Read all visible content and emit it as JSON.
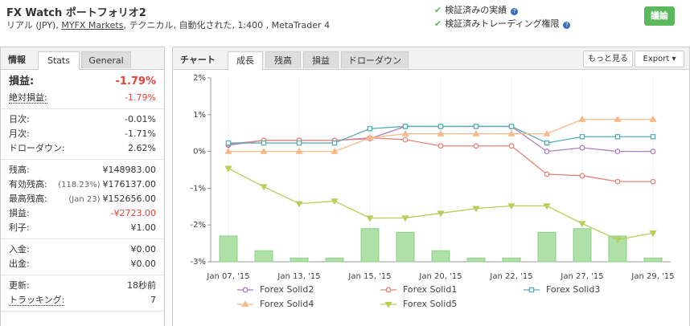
{
  "header": {
    "title": "FX Watch ポートフォリオ2",
    "subtitle": [
      "リアル (JPY), ",
      "MYFX Markets",
      ", テクニカル, 自動化された, 1:400 , MetaTrader 4"
    ],
    "verified": [
      "検証済みの実績",
      "検証済みトレーディング権限"
    ],
    "button": "議論"
  },
  "stats": {
    "tabs": [
      "情報",
      "Stats",
      "General"
    ],
    "groups": [
      [
        {
          "label": "損益:",
          "value": "-1.79%"
        },
        {
          "label": "絶対損益:",
          "value": "-1.79%"
        }
      ],
      [
        {
          "label": "日次:",
          "value": "-0.01%"
        },
        {
          "label": "月次:",
          "value": "-1.71%"
        },
        {
          "label": "ドローダウン:",
          "value": "2.62%"
        }
      ],
      [
        {
          "label": "残高:",
          "value": "¥148983.00"
        },
        {
          "label": "有効残高:",
          "note": "(118.23%)",
          "value": "¥176137.00"
        },
        {
          "label": "最高残高:",
          "note": "(Jan 23)",
          "value": "¥152656.00"
        },
        {
          "label": "損益:",
          "value": "-¥2723.00"
        },
        {
          "label": "利子:",
          "value": "¥1.00"
        }
      ],
      [
        {
          "label": "入金:",
          "value": "¥0.00"
        },
        {
          "label": "出金:",
          "value": "¥0.00"
        }
      ],
      [
        {
          "label": "更新:",
          "value": "18秒前"
        },
        {
          "label": "トラッキング:",
          "value": "7"
        }
      ]
    ]
  },
  "chart_panel": {
    "title": "チャート",
    "tabs": [
      "成長",
      "残高",
      "損益",
      "ドローダウン"
    ],
    "buttons": [
      "もっと見る",
      "Export"
    ]
  },
  "chart_data": {
    "type": "line",
    "categories": [
      "Jan 07, '15",
      null,
      "Jan 13, '15",
      null,
      "Jan 15, '15",
      null,
      "Jan 20, '15",
      null,
      "Jan 22, '15",
      null,
      "Jan 27, '15",
      null,
      "Jan 29, '15"
    ],
    "ylim": [
      -3,
      2
    ],
    "yticks": [
      {
        "value": -3,
        "label": "-3%"
      },
      {
        "value": -2,
        "label": "-2%"
      },
      {
        "value": -1,
        "label": "-1%"
      },
      {
        "value": 0,
        "label": "0%"
      },
      {
        "value": 1,
        "label": "1%"
      },
      {
        "value": 2,
        "label": "2%"
      }
    ],
    "bars": {
      "color": "#aee0a8",
      "values": [
        -2.3,
        -2.7,
        -2.9,
        -2.9,
        -2.1,
        -2.2,
        -2.7,
        -2.9,
        -2.9,
        -2.2,
        -2.1,
        -2.3,
        -2.9
      ]
    },
    "series": [
      {
        "name": "Forex Solid2",
        "color": "#b07cc6",
        "marker": "circle",
        "values": [
          0.17,
          0.3,
          0.3,
          0.3,
          0.35,
          0.68,
          0.68,
          0.68,
          0.68,
          0,
          0.1,
          0,
          0
        ]
      },
      {
        "name": "Forex Solid1",
        "color": "#e8837a",
        "marker": "circle",
        "values": [
          0.2,
          0.3,
          0.3,
          0.3,
          0.37,
          0.32,
          0.15,
          0.15,
          0.15,
          -0.62,
          -0.66,
          -0.82,
          -0.82
        ]
      },
      {
        "name": "Forex Solid3",
        "color": "#5aaeb5",
        "marker": "square",
        "values": [
          0.23,
          0.23,
          0.23,
          0.23,
          0.62,
          0.68,
          0.68,
          0.68,
          0.68,
          0.23,
          0.4,
          0.4,
          0.4
        ]
      },
      {
        "name": "Forex Solid4",
        "color": "#f5b98a",
        "marker": "triangle",
        "values": [
          0,
          0,
          0,
          0,
          0.37,
          0.48,
          0.48,
          0.48,
          0.48,
          0.48,
          0.87,
          0.87,
          0.87
        ]
      },
      {
        "name": "Forex Solid5",
        "color": "#b5cf5a",
        "marker": "triangle-down",
        "values": [
          -0.46,
          -0.96,
          -1.42,
          -1.35,
          -1.81,
          -1.81,
          -1.68,
          -1.55,
          -1.48,
          -1.48,
          -1.96,
          -2.4,
          -2.22
        ]
      }
    ]
  }
}
